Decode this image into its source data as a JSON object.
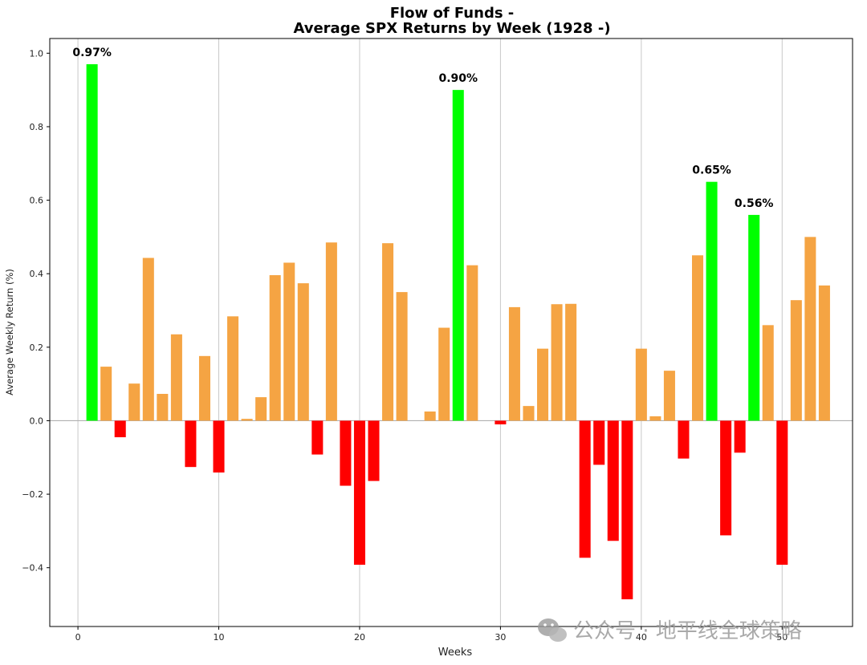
{
  "chart_data": {
    "type": "bar",
    "title": "Flow of Funds -",
    "subtitle": "Average SPX Returns by Week (1928 -)",
    "xlabel": "Weeks",
    "ylabel": "Average Weekly Return (%)",
    "xlim": [
      -2,
      55
    ],
    "ylim": [
      -0.56,
      1.04
    ],
    "xticks": [
      0,
      10,
      20,
      30,
      40,
      50
    ],
    "yticks": [
      -0.4,
      -0.2,
      0.0,
      0.2,
      0.4,
      0.6,
      0.8,
      1.0
    ],
    "xtick_labels": [
      "0",
      "10",
      "20",
      "30",
      "40",
      "50"
    ],
    "ytick_labels": [
      "−0.4",
      "−0.2",
      "0.0",
      "0.2",
      "0.4",
      "0.6",
      "0.8",
      "1.0"
    ],
    "grid": "vertical",
    "colors": {
      "top": "#00ff00",
      "positive": "#f5a443",
      "negative": "#ff0000",
      "zero_line": "#b0b0b0",
      "grid": "#c8c8c8"
    },
    "weeks": [
      1,
      2,
      3,
      4,
      5,
      6,
      7,
      8,
      9,
      10,
      11,
      12,
      13,
      14,
      15,
      16,
      17,
      18,
      19,
      20,
      21,
      22,
      23,
      24,
      25,
      26,
      27,
      28,
      29,
      30,
      31,
      32,
      33,
      34,
      35,
      36,
      37,
      38,
      39,
      40,
      41,
      42,
      43,
      44,
      45,
      46,
      47,
      48,
      49,
      50,
      51,
      52,
      53
    ],
    "values": [
      0.97,
      0.147,
      -0.045,
      0.101,
      0.443,
      0.073,
      0.235,
      -0.126,
      0.176,
      -0.141,
      0.284,
      0.005,
      0.064,
      0.396,
      0.43,
      0.374,
      -0.092,
      0.485,
      -0.177,
      -0.392,
      -0.164,
      0.483,
      0.35,
      0.0,
      0.025,
      0.253,
      0.9,
      0.423,
      0.0,
      -0.01,
      0.309,
      0.04,
      0.196,
      0.317,
      0.318,
      -0.373,
      -0.12,
      -0.327,
      -0.486,
      0.196,
      0.012,
      0.136,
      -0.103,
      0.45,
      0.65,
      -0.312,
      -0.087,
      0.56,
      0.26,
      -0.392,
      0.328,
      0.5,
      0.368
    ],
    "highlight_weeks": [
      1,
      27,
      45,
      48
    ],
    "annotations": [
      {
        "week": 1,
        "value": 0.97,
        "text": "0.97%"
      },
      {
        "week": 27,
        "value": 0.9,
        "text": "0.90%"
      },
      {
        "week": 45,
        "value": 0.65,
        "text": "0.65%"
      },
      {
        "week": 48,
        "value": 0.56,
        "text": "0.56%"
      }
    ]
  },
  "watermark": {
    "text": "公众号 · 地平线全球策略",
    "icon": "wechat-icon"
  }
}
